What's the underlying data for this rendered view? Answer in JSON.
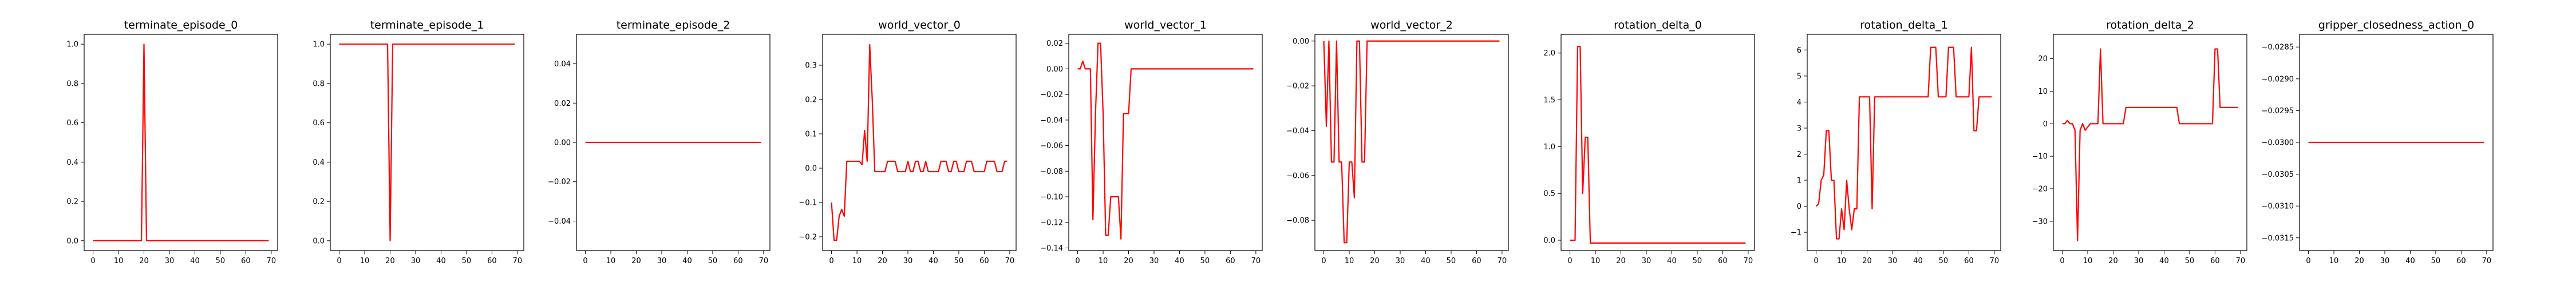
{
  "chart_data": [
    {
      "type": "line",
      "title": "terminate_episode_0",
      "xlabel": "",
      "ylabel": "",
      "xlim": [
        -3.5,
        72.5
      ],
      "ylim": [
        -0.05,
        1.05
      ],
      "xticks": [
        0,
        10,
        20,
        30,
        40,
        50,
        60,
        70
      ],
      "xtick_labels": [
        "0",
        "10",
        "20",
        "30",
        "40",
        "50",
        "60",
        "70"
      ],
      "yticks": [
        0.0,
        0.2,
        0.4,
        0.6,
        0.8,
        1.0
      ],
      "ytick_labels": [
        "0.0",
        "0.2",
        "0.4",
        "0.6",
        "0.8",
        "1.0"
      ],
      "color": "#ff0000",
      "grid": false,
      "series": [
        {
          "x": [
            0,
            19,
            20,
            21,
            69
          ],
          "y": [
            0,
            0,
            1,
            0,
            0
          ]
        }
      ]
    },
    {
      "type": "line",
      "title": "terminate_episode_1",
      "xlabel": "",
      "ylabel": "",
      "xlim": [
        -3.5,
        72.5
      ],
      "ylim": [
        -0.05,
        1.05
      ],
      "xticks": [
        0,
        10,
        20,
        30,
        40,
        50,
        60,
        70
      ],
      "xtick_labels": [
        "0",
        "10",
        "20",
        "30",
        "40",
        "50",
        "60",
        "70"
      ],
      "yticks": [
        0.0,
        0.2,
        0.4,
        0.6,
        0.8,
        1.0
      ],
      "ytick_labels": [
        "0.0",
        "0.2",
        "0.4",
        "0.6",
        "0.8",
        "1.0"
      ],
      "color": "#ff0000",
      "grid": false,
      "series": [
        {
          "x": [
            0,
            19,
            20,
            21,
            69
          ],
          "y": [
            1,
            1,
            0,
            1,
            1
          ]
        }
      ]
    },
    {
      "type": "line",
      "title": "terminate_episode_2",
      "xlabel": "",
      "ylabel": "",
      "xlim": [
        -3.5,
        72.5
      ],
      "ylim": [
        -0.055,
        0.055
      ],
      "xticks": [
        0,
        10,
        20,
        30,
        40,
        50,
        60,
        70
      ],
      "xtick_labels": [
        "0",
        "10",
        "20",
        "30",
        "40",
        "50",
        "60",
        "70"
      ],
      "yticks": [
        -0.04,
        -0.02,
        0.0,
        0.02,
        0.04
      ],
      "ytick_labels": [
        "−0.04",
        "−0.02",
        "0.00",
        "0.02",
        "0.04"
      ],
      "color": "#ff0000",
      "grid": false,
      "series": [
        {
          "x": [
            0,
            69
          ],
          "y": [
            0,
            0
          ]
        }
      ]
    },
    {
      "type": "line",
      "title": "world_vector_0",
      "xlabel": "",
      "ylabel": "",
      "xlim": [
        -3.5,
        72.5
      ],
      "ylim": [
        -0.24,
        0.39
      ],
      "xticks": [
        0,
        10,
        20,
        30,
        40,
        50,
        60,
        70
      ],
      "xtick_labels": [
        "0",
        "10",
        "20",
        "30",
        "40",
        "50",
        "60",
        "70"
      ],
      "yticks": [
        -0.2,
        -0.1,
        0.0,
        0.1,
        0.2,
        0.3
      ],
      "ytick_labels": [
        "−0.2",
        "−0.1",
        "0.0",
        "0.1",
        "0.2",
        "0.3"
      ],
      "color": "#ff0000",
      "grid": false,
      "series": [
        {
          "x": [
            0,
            1,
            2,
            3,
            4,
            5,
            6,
            7,
            8,
            9,
            10,
            11,
            12,
            13,
            14,
            15,
            16,
            17,
            18,
            19,
            20,
            21,
            22,
            23,
            24,
            25,
            26,
            27,
            28,
            29,
            30,
            31,
            32,
            33,
            34,
            35,
            36,
            37,
            38,
            39,
            40,
            41,
            42,
            43,
            44,
            45,
            46,
            47,
            48,
            49,
            50,
            51,
            52,
            53,
            54,
            55,
            56,
            57,
            58,
            59,
            60,
            61,
            62,
            63,
            64,
            65,
            66,
            67,
            68,
            69
          ],
          "y": [
            -0.1,
            -0.21,
            -0.21,
            -0.14,
            -0.12,
            -0.14,
            0.02,
            0.02,
            0.02,
            0.02,
            0.02,
            0.02,
            0.01,
            0.11,
            0.02,
            0.36,
            0.2,
            -0.01,
            -0.01,
            -0.01,
            -0.01,
            -0.01,
            0.02,
            0.02,
            0.02,
            0.02,
            -0.01,
            -0.01,
            -0.01,
            -0.01,
            0.02,
            -0.01,
            -0.01,
            0.02,
            0.02,
            -0.01,
            -0.01,
            0.02,
            -0.01,
            -0.01,
            -0.01,
            -0.01,
            -0.01,
            0.02,
            0.02,
            0.02,
            -0.01,
            -0.01,
            0.02,
            0.02,
            -0.01,
            -0.01,
            -0.01,
            0.02,
            0.02,
            0.02,
            -0.01,
            -0.01,
            -0.01,
            -0.01,
            -0.01,
            0.02,
            0.02,
            0.02,
            0.02,
            -0.01,
            -0.01,
            -0.01,
            0.02,
            0.02
          ]
        }
      ]
    },
    {
      "type": "line",
      "title": "world_vector_1",
      "xlabel": "",
      "ylabel": "",
      "xlim": [
        -3.5,
        72.5
      ],
      "ylim": [
        -0.142,
        0.027
      ],
      "xticks": [
        0,
        10,
        20,
        30,
        40,
        50,
        60,
        70
      ],
      "xtick_labels": [
        "0",
        "10",
        "20",
        "30",
        "40",
        "50",
        "60",
        "70"
      ],
      "yticks": [
        -0.14,
        -0.12,
        -0.1,
        -0.08,
        -0.06,
        -0.04,
        -0.02,
        0.0,
        0.02
      ],
      "ytick_labels": [
        "−0.14",
        "−0.12",
        "−0.10",
        "−0.08",
        "−0.06",
        "−0.04",
        "−0.02",
        "0.00",
        "0.02"
      ],
      "color": "#ff0000",
      "grid": false,
      "series": [
        {
          "x": [
            0,
            1,
            2,
            3,
            4,
            5,
            6,
            7,
            8,
            9,
            10,
            11,
            12,
            13,
            14,
            15,
            16,
            17,
            18,
            19,
            20,
            21,
            22,
            23,
            24,
            69
          ],
          "y": [
            0.0,
            0.0,
            0.006,
            0.0,
            0.0,
            0.0,
            -0.118,
            -0.035,
            0.02,
            0.02,
            -0.035,
            -0.13,
            -0.13,
            -0.1,
            -0.1,
            -0.1,
            -0.1,
            -0.133,
            -0.035,
            -0.035,
            -0.035,
            0.0,
            0.0,
            0.0,
            0.0,
            0.0
          ]
        }
      ]
    },
    {
      "type": "line",
      "title": "world_vector_2",
      "xlabel": "",
      "ylabel": "",
      "xlim": [
        -3.5,
        72.5
      ],
      "ylim": [
        -0.0935,
        0.003
      ],
      "xticks": [
        0,
        10,
        20,
        30,
        40,
        50,
        60,
        70
      ],
      "xtick_labels": [
        "0",
        "10",
        "20",
        "30",
        "40",
        "50",
        "60",
        "70"
      ],
      "yticks": [
        -0.08,
        -0.06,
        -0.04,
        -0.02,
        0.0
      ],
      "ytick_labels": [
        "−0.08",
        "−0.06",
        "−0.04",
        "−0.02",
        "0.00"
      ],
      "color": "#ff0000",
      "grid": false,
      "series": [
        {
          "x": [
            0,
            1,
            2,
            3,
            4,
            5,
            6,
            7,
            8,
            9,
            10,
            11,
            12,
            13,
            14,
            15,
            16,
            17,
            18,
            19,
            20,
            21,
            22,
            69
          ],
          "y": [
            0.0,
            -0.038,
            0.0,
            -0.054,
            -0.054,
            0.0,
            -0.054,
            -0.054,
            -0.09,
            -0.09,
            -0.054,
            -0.054,
            -0.07,
            0.0,
            0.0,
            -0.054,
            -0.054,
            0.0,
            0.0,
            0.0,
            0.0,
            0.0,
            0.0,
            0.0
          ]
        }
      ]
    },
    {
      "type": "line",
      "title": "rotation_delta_0",
      "xlabel": "",
      "ylabel": "",
      "xlim": [
        -3.5,
        72.5
      ],
      "ylim": [
        -0.11,
        2.2
      ],
      "xticks": [
        0,
        10,
        20,
        30,
        40,
        50,
        60,
        70
      ],
      "xtick_labels": [
        "0",
        "10",
        "20",
        "30",
        "40",
        "50",
        "60",
        "70"
      ],
      "yticks": [
        0.0,
        0.5,
        1.0,
        1.5,
        2.0
      ],
      "ytick_labels": [
        "0.0",
        "0.5",
        "1.0",
        "1.5",
        "2.0"
      ],
      "color": "#ff0000",
      "grid": false,
      "series": [
        {
          "x": [
            0,
            1,
            2,
            3,
            4,
            5,
            6,
            7,
            8,
            9,
            69
          ],
          "y": [
            0,
            0,
            0,
            2.07,
            2.07,
            0.5,
            1.1,
            1.1,
            -0.03,
            -0.03,
            -0.03
          ]
        }
      ]
    },
    {
      "type": "line",
      "title": "rotation_delta_1",
      "xlabel": "",
      "ylabel": "",
      "xlim": [
        -3.5,
        72.5
      ],
      "ylim": [
        -1.7,
        6.6
      ],
      "xticks": [
        0,
        10,
        20,
        30,
        40,
        50,
        60,
        70
      ],
      "xtick_labels": [
        "0",
        "10",
        "20",
        "30",
        "40",
        "50",
        "60",
        "70"
      ],
      "yticks": [
        -1,
        0,
        1,
        2,
        3,
        4,
        5,
        6
      ],
      "ytick_labels": [
        "−1",
        "0",
        "1",
        "2",
        "3",
        "4",
        "5",
        "6"
      ],
      "color": "#ff0000",
      "grid": false,
      "series": [
        {
          "x": [
            0,
            1,
            2,
            3,
            4,
            5,
            6,
            7,
            8,
            9,
            10,
            11,
            12,
            13,
            14,
            15,
            16,
            17,
            18,
            19,
            20,
            21,
            22,
            23,
            24,
            25,
            26,
            27,
            28,
            29,
            30,
            31,
            32,
            33,
            34,
            35,
            36,
            37,
            38,
            39,
            40,
            41,
            42,
            43,
            44,
            45,
            46,
            47,
            48,
            49,
            50,
            51,
            52,
            53,
            54,
            55,
            56,
            57,
            58,
            59,
            60,
            61,
            62,
            63,
            64,
            65,
            66,
            67,
            68,
            69
          ],
          "y": [
            0.0,
            0.1,
            1.0,
            1.2,
            2.9,
            2.9,
            1.0,
            1.0,
            -1.25,
            -1.25,
            -0.1,
            -0.9,
            1.0,
            -0.1,
            -0.9,
            -0.1,
            -0.1,
            4.2,
            4.2,
            4.2,
            4.2,
            4.2,
            -0.1,
            4.2,
            4.2,
            4.2,
            4.2,
            4.2,
            4.2,
            4.2,
            4.2,
            4.2,
            4.2,
            4.2,
            4.2,
            4.2,
            4.2,
            4.2,
            4.2,
            4.2,
            4.2,
            4.2,
            4.2,
            4.2,
            4.2,
            6.1,
            6.1,
            6.1,
            4.2,
            4.2,
            4.2,
            4.2,
            6.1,
            6.1,
            6.1,
            4.2,
            4.2,
            4.2,
            4.2,
            4.2,
            4.2,
            6.1,
            2.9,
            2.9,
            4.2,
            4.2,
            4.2,
            4.2,
            4.2,
            4.2
          ]
        }
      ]
    },
    {
      "type": "line",
      "title": "rotation_delta_2",
      "xlabel": "",
      "ylabel": "",
      "xlim": [
        -3.5,
        72.5
      ],
      "ylim": [
        -39,
        27.5
      ],
      "xticks": [
        0,
        10,
        20,
        30,
        40,
        50,
        60,
        70
      ],
      "xtick_labels": [
        "0",
        "10",
        "20",
        "30",
        "40",
        "50",
        "60",
        "70"
      ],
      "yticks": [
        -30,
        -20,
        -10,
        0,
        10,
        20
      ],
      "ytick_labels": [
        "−30",
        "−20",
        "−10",
        "0",
        "10",
        "20"
      ],
      "color": "#ff0000",
      "grid": false,
      "series": [
        {
          "x": [
            0,
            1,
            2,
            3,
            4,
            5,
            6,
            7,
            8,
            9,
            10,
            11,
            12,
            13,
            14,
            15,
            16,
            17,
            18,
            19,
            20,
            21,
            22,
            23,
            24,
            25,
            26,
            27,
            28,
            29,
            30,
            31,
            32,
            33,
            34,
            35,
            36,
            37,
            38,
            39,
            40,
            41,
            42,
            43,
            44,
            45,
            46,
            47,
            48,
            49,
            50,
            51,
            52,
            53,
            54,
            55,
            56,
            57,
            58,
            59,
            60,
            61,
            62,
            63,
            64,
            65,
            66,
            67,
            68,
            69
          ],
          "y": [
            0,
            0,
            1,
            0,
            0,
            -2,
            -36,
            -2,
            0,
            -2,
            -1,
            0,
            0,
            0,
            0,
            23,
            0,
            0,
            0,
            0,
            0,
            0,
            0,
            0,
            0,
            5,
            5,
            5,
            5,
            5,
            5,
            5,
            5,
            5,
            5,
            5,
            5,
            5,
            5,
            5,
            5,
            5,
            5,
            5,
            5,
            5,
            0,
            0,
            0,
            0,
            0,
            0,
            0,
            0,
            0,
            0,
            0,
            0,
            0,
            0,
            23,
            23,
            5,
            5,
            5,
            5,
            5,
            5,
            5,
            5
          ]
        }
      ]
    },
    {
      "type": "line",
      "title": "gripper_closedness_action_0",
      "xlabel": "",
      "ylabel": "",
      "xlim": [
        -3.5,
        72.5
      ],
      "ylim": [
        -0.0317,
        -0.0283
      ],
      "xticks": [
        0,
        10,
        20,
        30,
        40,
        50,
        60,
        70
      ],
      "xtick_labels": [
        "0",
        "10",
        "20",
        "30",
        "40",
        "50",
        "60",
        "70"
      ],
      "yticks": [
        -0.0315,
        -0.031,
        -0.0305,
        -0.03,
        -0.0295,
        -0.029,
        -0.0285
      ],
      "ytick_labels": [
        "−0.0315",
        "−0.0310",
        "−0.0305",
        "−0.0300",
        "−0.0295",
        "−0.0290",
        "−0.0285"
      ],
      "color": "#ff0000",
      "grid": false,
      "series": [
        {
          "x": [
            0,
            69
          ],
          "y": [
            -0.03,
            -0.03
          ]
        }
      ]
    }
  ]
}
